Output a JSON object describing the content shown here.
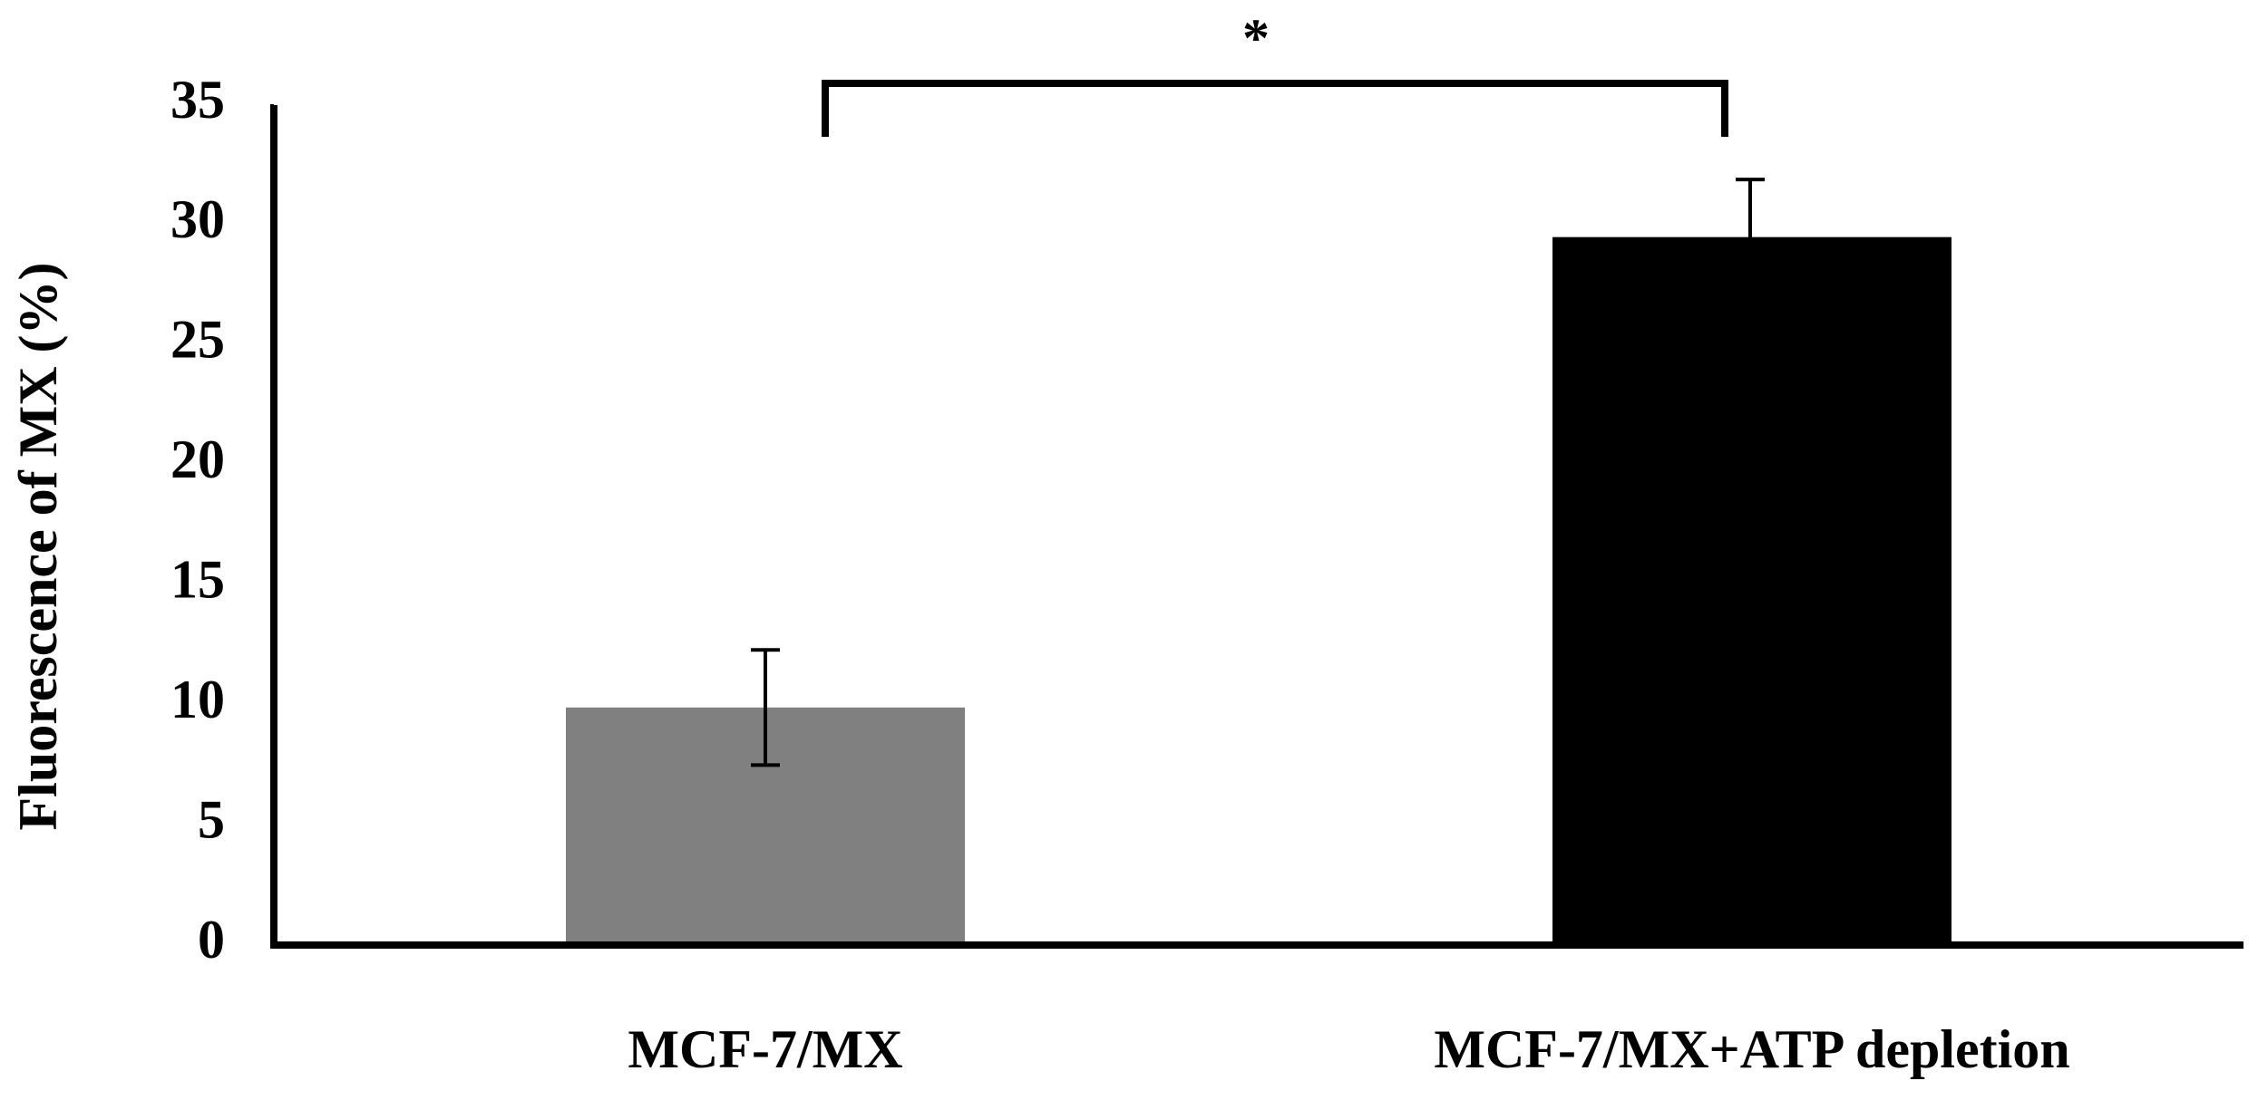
{
  "chart_data": {
    "type": "bar",
    "ylabel": "Fluorescence of MX (%)",
    "categories": [
      "MCF-7/MX",
      "MCF-7/MX+ATP depletion"
    ],
    "values": [
      9.9,
      29.5
    ],
    "errors": [
      2.4,
      2.4
    ],
    "colors": [
      "#808080",
      "#000000"
    ],
    "ylim": [
      0,
      35
    ],
    "yticks": [
      0,
      5,
      10,
      15,
      20,
      25,
      30,
      35
    ],
    "annotation": "*"
  }
}
